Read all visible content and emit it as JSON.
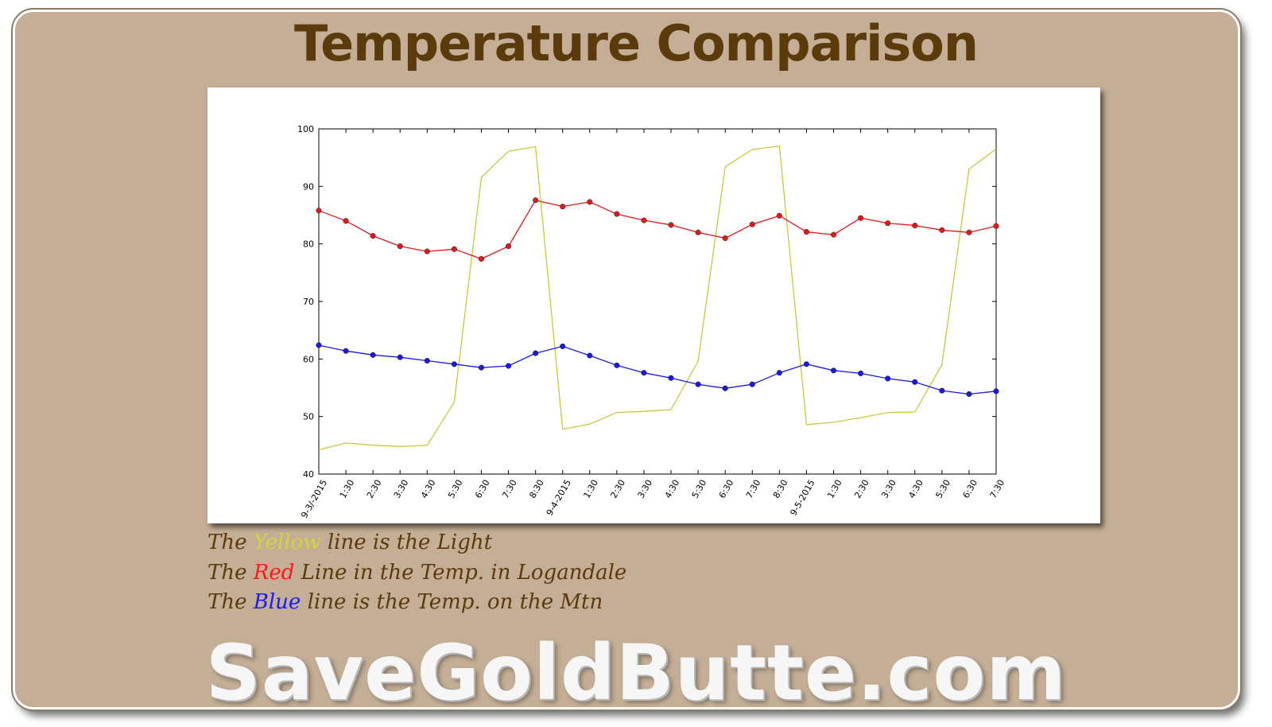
{
  "page": {
    "title": "Temperature Comparison",
    "watermark": "SaveGoldButte.com"
  },
  "legend": [
    {
      "prefix": "The ",
      "keyword": "Yellow",
      "keyword_color": "#d4d43a",
      "suffix": " line is the Light"
    },
    {
      "prefix": "The ",
      "keyword": "Red",
      "keyword_color": "#ff1a1a",
      "suffix": " Line in the Temp. in Logandale"
    },
    {
      "prefix": "The ",
      "keyword": "Blue",
      "keyword_color": "#1a1aff",
      "suffix": " line is the Temp. on the Mtn"
    }
  ],
  "colors": {
    "background": "#c4ae95",
    "title": "#5b3a0c",
    "yellow_series": "#c8c83c",
    "red_series": "#e01a1a",
    "blue_series": "#1a1ae0"
  },
  "chart_data": {
    "type": "line",
    "title": "",
    "xlabel": "",
    "ylabel": "",
    "ylim": [
      40,
      100
    ],
    "yticks": [
      40,
      50,
      60,
      70,
      80,
      90,
      100
    ],
    "grid": false,
    "categories": [
      "9-3/-2015",
      "1:30",
      "2:30",
      "3:30",
      "4:30",
      "5:30",
      "6:30",
      "7:30",
      "8:30",
      "9-4-2015",
      "1:30",
      "2:30",
      "3:30",
      "4:30",
      "5:30",
      "6:30",
      "7:30",
      "8:30",
      "9-5-2015",
      "1:30",
      "2:30",
      "3:30",
      "4:30",
      "5:30",
      "6:30",
      "7:30"
    ],
    "series": [
      {
        "name": "",
        "color": "#c8c83c",
        "markers": false,
        "values": [
          44.2,
          45.4,
          45.0,
          44.8,
          45.0,
          52.5,
          91.6,
          96.1,
          96.9,
          47.8,
          48.7,
          50.7,
          50.9,
          51.2,
          59.6,
          93.4,
          96.4,
          97.0,
          48.6,
          49.0,
          49.8,
          50.7,
          50.8,
          59.0,
          93.0,
          96.5
        ]
      },
      {
        "name": "",
        "color": "#e01a1a",
        "markers": true,
        "values": [
          85.8,
          84.0,
          81.4,
          79.6,
          78.7,
          79.1,
          77.4,
          79.6,
          87.6,
          86.5,
          87.3,
          85.2,
          84.1,
          83.3,
          82.0,
          81.0,
          83.4,
          84.9,
          82.1,
          81.6,
          84.5,
          83.6,
          83.2,
          82.4,
          82.0,
          83.1
        ]
      },
      {
        "name": "",
        "color": "#1a1ae0",
        "markers": true,
        "values": [
          62.4,
          61.4,
          60.7,
          60.3,
          59.7,
          59.1,
          58.5,
          58.8,
          61.0,
          62.2,
          60.6,
          58.9,
          57.6,
          56.7,
          55.6,
          54.9,
          55.6,
          57.6,
          59.1,
          58.0,
          57.5,
          56.6,
          56.0,
          54.5,
          53.9,
          54.4
        ]
      }
    ]
  }
}
